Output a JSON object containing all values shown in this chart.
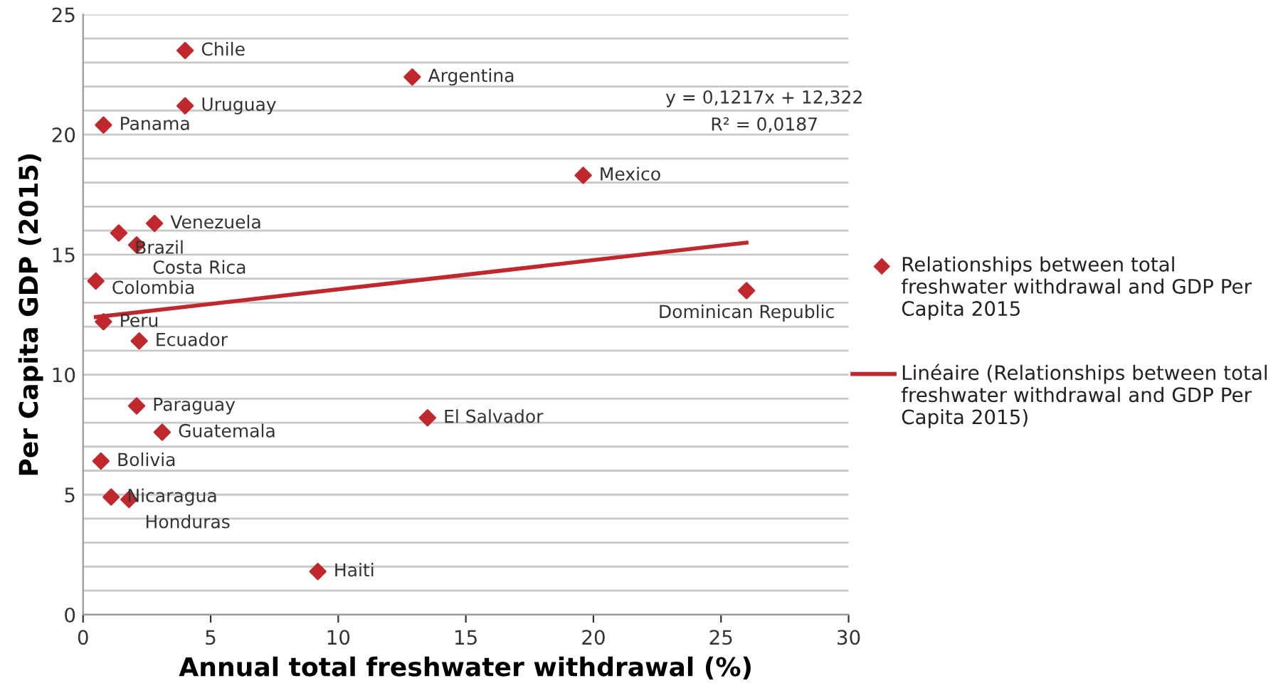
{
  "chart_data": {
    "type": "scatter",
    "xlabel": "Annual total freshwater withdrawal (%)",
    "ylabel": "Per Capita GDP (2015)",
    "xlim": [
      0,
      30
    ],
    "xticks": [
      0,
      5,
      10,
      15,
      20,
      25,
      30
    ],
    "ylim": [
      0,
      25
    ],
    "yticks": [
      0,
      {
        "value": 1,
        "label": null
      },
      {
        "value": 2,
        "label": null
      },
      {
        "value": 3,
        "label": null
      },
      {
        "value": 4,
        "label": null
      },
      5,
      {
        "value": 6,
        "label": null
      },
      {
        "value": 7,
        "label": null
      },
      {
        "value": 8,
        "label": null
      },
      {
        "value": 9,
        "label": null
      },
      10,
      {
        "value": 11,
        "label": null
      },
      {
        "value": 12,
        "label": null
      },
      {
        "value": 13,
        "label": null
      },
      {
        "value": 14,
        "label": null
      },
      15,
      {
        "value": 16,
        "label": null
      },
      {
        "value": 17,
        "label": null
      },
      {
        "value": 18,
        "label": null
      },
      {
        "value": 19,
        "label": null
      },
      20,
      {
        "value": 21,
        "label": null
      },
      {
        "value": 22,
        "label": null
      },
      {
        "value": 23,
        "label": null
      },
      {
        "value": 24,
        "label": null
      },
      25
    ],
    "grid": "y",
    "legend": "right",
    "series": [
      {
        "name": "Relationships between total freshwater withdrawal and GDP Per Capita 2015",
        "color": "#c0282d",
        "marker": "diamond",
        "x": [
          4.0,
          12.9,
          4.0,
          0.8,
          19.6,
          2.8,
          1.4,
          2.1,
          0.5,
          26.0,
          0.8,
          2.2,
          2.1,
          13.5,
          3.1,
          0.7,
          1.1,
          1.8,
          9.2
        ],
        "values": [
          23.5,
          22.4,
          21.2,
          20.4,
          18.3,
          16.3,
          15.9,
          15.4,
          13.9,
          13.5,
          12.2,
          11.4,
          8.7,
          8.2,
          7.6,
          6.4,
          4.9,
          4.8,
          1.8
        ]
      },
      {
        "type": "line",
        "name": "Linéaire (Relationships between total freshwater withdrawal and GDP Per Capita 2015)",
        "color": "#c0282d",
        "line_style": "solid",
        "x": [
          0.5,
          26.0
        ],
        "values": [
          12.4,
          15.5
        ]
      }
    ],
    "annotations": [
      {
        "text": "Chile",
        "x": 4.0,
        "y": 23.5
      },
      {
        "text": "Argentina",
        "x": 12.9,
        "y": 22.4
      },
      {
        "text": "Uruguay",
        "x": 4.0,
        "y": 21.2
      },
      {
        "text": "Panama",
        "x": 0.8,
        "y": 20.4
      },
      {
        "text": "Mexico",
        "x": 19.6,
        "y": 18.3
      },
      {
        "text": "Venezuela",
        "x": 2.8,
        "y": 16.3
      },
      {
        "text": "Brazil",
        "x": 1.4,
        "y": 15.9
      },
      {
        "text": "Costa Rica",
        "x": 2.1,
        "y": 15.4
      },
      {
        "text": "Colombia",
        "x": 0.5,
        "y": 13.9
      },
      {
        "text": "Dominican Republic",
        "x": 26.0,
        "y": 13.5
      },
      {
        "text": "Peru",
        "x": 0.8,
        "y": 12.2
      },
      {
        "text": "Ecuador",
        "x": 2.2,
        "y": 11.4
      },
      {
        "text": "Paraguay",
        "x": 2.1,
        "y": 8.7
      },
      {
        "text": "El Salvador",
        "x": 13.5,
        "y": 8.2
      },
      {
        "text": "Guatemala",
        "x": 3.1,
        "y": 7.6
      },
      {
        "text": "Bolivia",
        "x": 0.7,
        "y": 6.4
      },
      {
        "text": "Nicaragua",
        "x": 1.1,
        "y": 4.9
      },
      {
        "text": "Honduras",
        "x": 1.8,
        "y": 4.8
      },
      {
        "text": "Haiti",
        "x": 9.2,
        "y": 1.8
      },
      "y = 0,1217x + 12,322",
      "R² = 0,0187"
    ]
  }
}
